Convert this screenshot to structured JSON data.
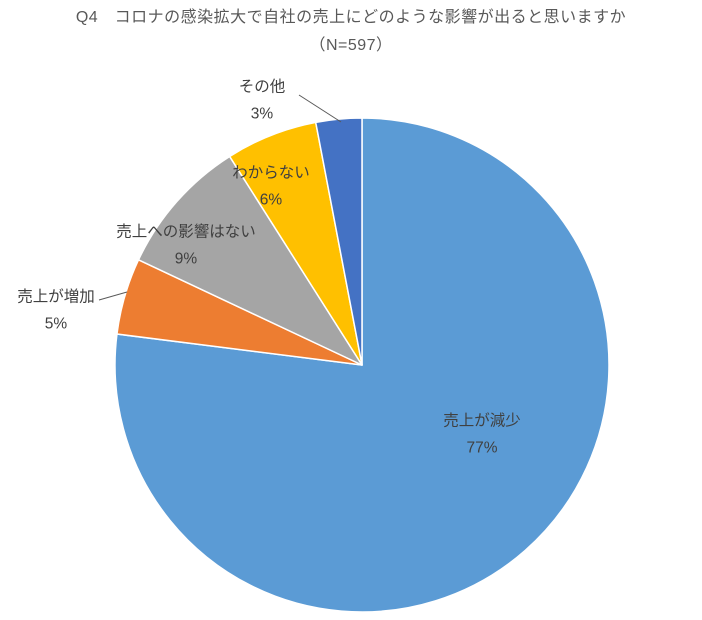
{
  "chart_data": {
    "type": "pie",
    "title": "Q4　コロナの感染拡大で自社の売上にどのような影響が出ると思いますか",
    "subtitle": "（N=597）",
    "n": 597,
    "start_angle_deg": 0,
    "direction": "clockwise",
    "label_text_color": "#404040",
    "leader_line_color": "#595959",
    "slices": [
      {
        "label": "売上が減少",
        "value": 77,
        "pct_label": "77%",
        "color": "#5B9BD5"
      },
      {
        "label": "売上が増加",
        "value": 5,
        "pct_label": "5%",
        "color": "#ED7D31"
      },
      {
        "label": "売上への影響はない",
        "value": 9,
        "pct_label": "9%",
        "color": "#A5A5A5"
      },
      {
        "label": "わからない",
        "value": 6,
        "pct_label": "6%",
        "color": "#FFC000"
      },
      {
        "label": "その他",
        "value": 3,
        "pct_label": "3%",
        "color": "#4472C4"
      }
    ]
  }
}
